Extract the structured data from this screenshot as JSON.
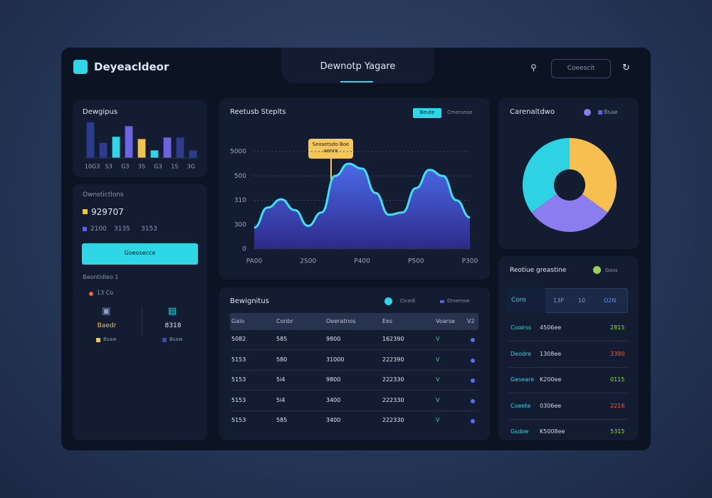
{
  "header": {
    "brand": "Deyeacldeor",
    "title": "Dewnotp Yagare",
    "button": "Coeescit"
  },
  "bar_chart": {
    "type": "bar",
    "title": "Dewgipus",
    "axis_labels": [
      "10G3",
      "S3",
      "G3",
      "3S",
      "G3",
      "1S",
      "3G"
    ],
    "values": [
      47,
      20,
      28,
      42,
      25,
      10,
      27,
      27,
      10
    ],
    "colors": [
      "#2d3c8c",
      "#2d3c8c",
      "#2fd6e6",
      "#6d63e3",
      "#f4c24f",
      "#2fd6e6",
      "#6d63e3",
      "#2d3c8c",
      "#2d3c8c"
    ]
  },
  "summary": {
    "title": "Ownstictlons",
    "amount": "929707",
    "detail_items": [
      "2100",
      "3135",
      "3153"
    ],
    "button": "Goeosecce",
    "notes": [
      "Baontidleo 1",
      "13 Co"
    ],
    "stats": [
      {
        "label": "Baedr",
        "caption": "Bsaw"
      },
      {
        "label": "8318",
        "caption": "Bsaw"
      }
    ]
  },
  "area_chart": {
    "type": "area",
    "title": "Reetusb Steplts",
    "toggles": [
      "Beute",
      "Cmeranse"
    ],
    "annotation": "Seosetsdo Boe aenre",
    "x": [
      0,
      0.5,
      1,
      1.5,
      2,
      2.5,
      3,
      3.5,
      4,
      4.5,
      5,
      5.5,
      6,
      6.5,
      7,
      7.5,
      8
    ],
    "values": [
      88,
      170,
      204,
      160,
      95,
      150,
      300,
      350,
      330,
      230,
      140,
      150,
      250,
      325,
      300,
      200,
      130
    ],
    "xlim": [
      0,
      8
    ],
    "xticks": [
      {
        "value": 0,
        "label": "PA00"
      },
      {
        "value": 2,
        "label": "2S00"
      },
      {
        "value": 4,
        "label": "P400"
      },
      {
        "value": 6,
        "label": "P500"
      },
      {
        "value": 8,
        "label": "P300"
      }
    ],
    "ylim": [
      0,
      400
    ],
    "yticks": [
      0,
      {
        "value": 100,
        "label": "300"
      },
      {
        "value": 200,
        "label": "310"
      },
      {
        "value": 300,
        "label": "500"
      },
      {
        "value": 400,
        "label": "5000"
      }
    ],
    "grid": true
  },
  "donut_chart": {
    "type": "pie",
    "title": "Carenaltdwo",
    "legend": "Bsae",
    "values": [
      35,
      30,
      35
    ],
    "colors": [
      "#f6bf4f",
      "#8b7cf0",
      "#2ed3e3"
    ]
  },
  "table": {
    "title": "Bewignitus",
    "legend": [
      "Cicedi",
      "Drverose"
    ],
    "columns": [
      "Galo",
      "Conbr",
      "Oeeratnos",
      "Ees",
      "Voarse",
      "V2"
    ],
    "rows": [
      [
        "5082",
        "585",
        "9800",
        "162390",
        "V"
      ],
      [
        "5153",
        "580",
        "31000",
        "222390",
        "V"
      ],
      [
        "5153",
        "5i4",
        "9800",
        "222330",
        "V"
      ],
      [
        "5153",
        "5i4",
        "3400",
        "222330",
        "V"
      ],
      [
        "5153",
        "585",
        "3400",
        "222330",
        "V"
      ]
    ]
  },
  "list": {
    "title": "Reotiue greastine",
    "legend": "Gaos",
    "tabs": [
      "Coro",
      "13P",
      "10",
      "O2N"
    ],
    "rows": [
      {
        "name": "Cooirss",
        "code": "4506ee",
        "value": "2815",
        "color": "#8fe04a"
      },
      {
        "name": "Deodre",
        "code": "1308ee",
        "value": "3390",
        "color": "#f0643c"
      },
      {
        "name": "Geseare",
        "code": "K200ee",
        "value": "0115",
        "color": "#8fe04a"
      },
      {
        "name": "Coeete",
        "code": "0306ee",
        "value": "2216",
        "color": "#f0643c"
      },
      {
        "name": "Gsdoe",
        "code": "K5008ee",
        "value": "5315",
        "color": "#8fe04a"
      }
    ]
  }
}
